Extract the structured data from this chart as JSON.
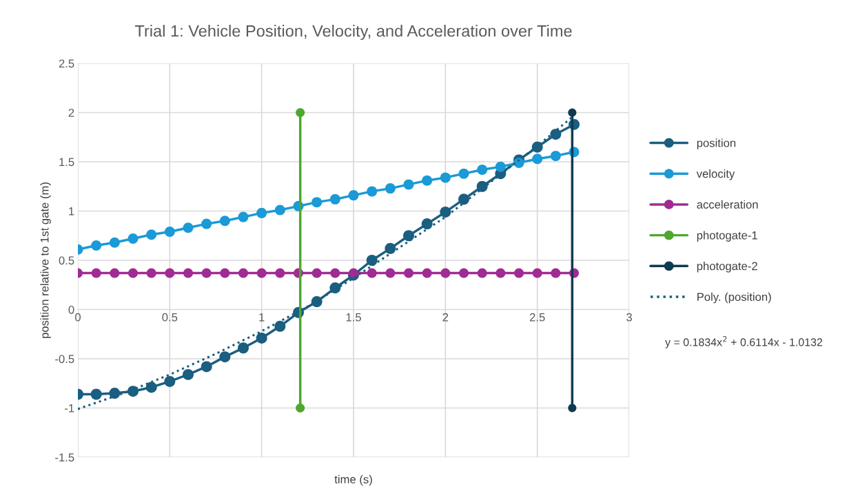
{
  "chart_data": {
    "type": "line",
    "title": "Trial 1: Vehicle Position, Velocity, and Acceleration over Time",
    "xlabel": "time (s)",
    "ylabel": "position relative to 1st gate (m)",
    "x": [
      0,
      0.1,
      0.2,
      0.3,
      0.4,
      0.5,
      0.6,
      0.7,
      0.8,
      0.9,
      1.0,
      1.1,
      1.2,
      1.3,
      1.4,
      1.5,
      1.6,
      1.7,
      1.8,
      1.9,
      2.0,
      2.1,
      2.2,
      2.3,
      2.4,
      2.5,
      2.6,
      2.7
    ],
    "series": [
      {
        "name": "position",
        "color": "#1a5e80",
        "marker": "circle",
        "line_style": "solid",
        "values": [
          -0.86,
          -0.86,
          -0.85,
          -0.83,
          -0.79,
          -0.73,
          -0.66,
          -0.58,
          -0.48,
          -0.39,
          -0.29,
          -0.17,
          -0.03,
          0.08,
          0.22,
          0.35,
          0.5,
          0.62,
          0.75,
          0.87,
          0.99,
          1.12,
          1.25,
          1.38,
          1.52,
          1.65,
          1.78,
          1.88
        ]
      },
      {
        "name": "velocity",
        "color": "#1a9ad6",
        "marker": "circle",
        "line_style": "solid",
        "values": [
          0.61,
          0.65,
          0.68,
          0.72,
          0.76,
          0.79,
          0.83,
          0.87,
          0.9,
          0.94,
          0.98,
          1.01,
          1.05,
          1.09,
          1.12,
          1.16,
          1.2,
          1.23,
          1.27,
          1.31,
          1.34,
          1.38,
          1.42,
          1.45,
          1.49,
          1.53,
          1.56,
          1.6
        ]
      },
      {
        "name": "acceleration",
        "color": "#a02b93",
        "marker": "circle",
        "line_style": "solid",
        "values": [
          0.37,
          0.37,
          0.37,
          0.37,
          0.37,
          0.37,
          0.37,
          0.37,
          0.37,
          0.37,
          0.37,
          0.37,
          0.37,
          0.37,
          0.37,
          0.37,
          0.37,
          0.37,
          0.37,
          0.37,
          0.37,
          0.37,
          0.37,
          0.37,
          0.37,
          0.37,
          0.37,
          0.37
        ]
      },
      {
        "name": "photogate-1",
        "color": "#4ea72e",
        "marker": "circle",
        "line_style": "solid",
        "x": [
          1.21,
          1.21
        ],
        "values": [
          2,
          -1
        ]
      },
      {
        "name": "photogate-2",
        "color": "#0e3a52",
        "marker": "circle",
        "line_style": "solid",
        "x": [
          2.69,
          2.69
        ],
        "values": [
          2,
          -1
        ]
      },
      {
        "name": "Poly. (position)",
        "type": "line",
        "color": "#1a5e80",
        "marker": "none",
        "line_style": "dotted",
        "x": [
          0,
          0.25,
          0.5,
          0.75,
          1.0,
          1.25,
          1.5,
          1.75,
          2.0,
          2.25,
          2.5,
          2.7
        ],
        "values": [
          -1.01,
          -0.85,
          -0.66,
          -0.45,
          -0.22,
          0.03,
          0.32,
          0.63,
          0.94,
          1.3,
          1.66,
          1.97
        ]
      }
    ],
    "xlim": [
      0,
      3
    ],
    "xticks": [
      0,
      0.5,
      1,
      1.5,
      2,
      2.5,
      3
    ],
    "ylim": [
      -1.5,
      2.5
    ],
    "yticks": [
      -1.5,
      -1,
      -0.5,
      0,
      0.5,
      1,
      1.5,
      2,
      2.5
    ],
    "grid": true,
    "legend": "right",
    "annotations": [
      "y = 0.1834x$^{2}$ + 0.6114x - 1.0132"
    ]
  }
}
